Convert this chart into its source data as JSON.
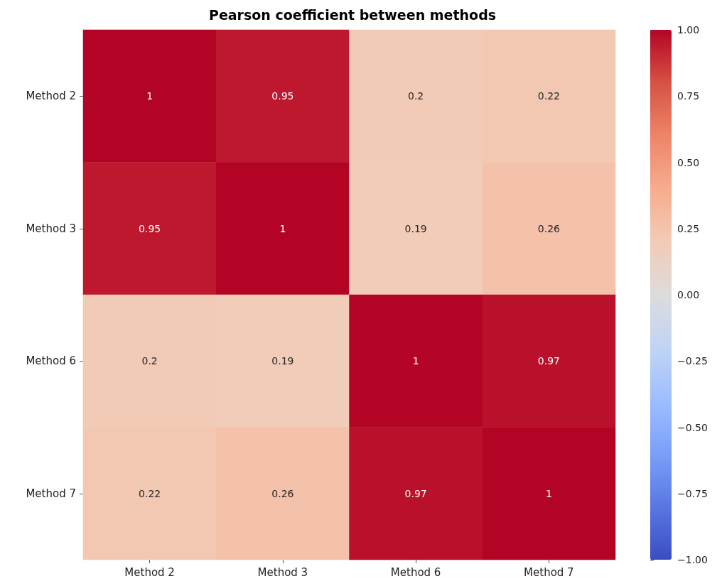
{
  "chart_data": {
    "type": "heatmap",
    "title": "Pearson coefficient between methods",
    "categories": [
      "Method 2",
      "Method 3",
      "Method 6",
      "Method 7"
    ],
    "y_categories": [
      "Method 2",
      "Method 3",
      "Method 6",
      "Method 7"
    ],
    "cells": [
      [
        1,
        0.95,
        0.2,
        0.22
      ],
      [
        0.95,
        1,
        0.19,
        0.26
      ],
      [
        0.2,
        0.19,
        1,
        0.97
      ],
      [
        0.22,
        0.26,
        0.97,
        1
      ]
    ],
    "data_labels": true,
    "clim": [
      -1,
      1
    ],
    "cticks": [
      {
        "value": -1,
        "label": "−1.00"
      },
      {
        "value": -0.75,
        "label": "−0.75"
      },
      {
        "value": -0.5,
        "label": "−0.50"
      },
      {
        "value": -0.25,
        "label": "−0.25"
      },
      {
        "value": 0,
        "label": "0.00"
      },
      {
        "value": 0.25,
        "label": "0.25"
      },
      {
        "value": 0.5,
        "label": "0.50"
      },
      {
        "value": 0.75,
        "label": "0.75"
      },
      {
        "value": 1,
        "label": "1.00"
      }
    ]
  }
}
